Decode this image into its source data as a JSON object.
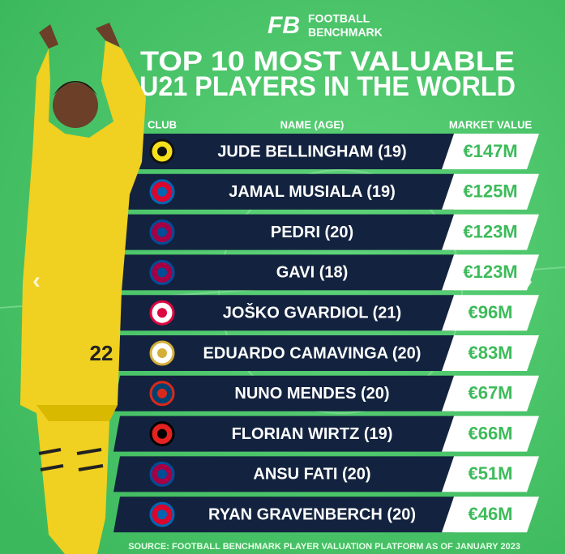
{
  "header": {
    "logo": "FB",
    "brand": [
      "FOOTBALL",
      "BENCHMARK"
    ],
    "title": [
      "TOP 10 MOST VALUABLE",
      "U21 PLAYERS IN THE WORLD"
    ]
  },
  "table": {
    "columns": [
      "CLUB",
      "NAME (AGE)",
      "MARKET VALUE"
    ],
    "rows": [
      [
        "JUDE BELLINGHAM (19)",
        "€147M"
      ],
      [
        "JAMAL MUSIALA (19)",
        "€125M"
      ],
      [
        "PEDRI (20)",
        "€123M"
      ],
      [
        "GAVI (18)",
        "€123M"
      ],
      [
        "JOŠKO GVARDIOL (21)",
        "€96M"
      ],
      [
        "EDUARDO CAMAVINGA (20)",
        "€83M"
      ],
      [
        "NUNO MENDES (20)",
        "€67M"
      ],
      [
        "FLORIAN WIRTZ (19)",
        "€66M"
      ],
      [
        "ANSU FATI (20)",
        "€51M"
      ],
      [
        "RYAN GRAVENBERCH (20)",
        "€46M"
      ]
    ]
  },
  "player": {
    "jersey_number": "22"
  },
  "source": "SOURCE: FOOTBALL BENCHMARK PLAYER VALUATION PLATFORM AS OF JANUARY 2023"
}
